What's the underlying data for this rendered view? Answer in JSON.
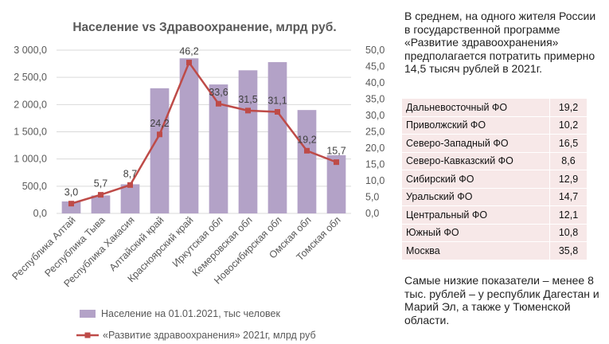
{
  "chart_data": {
    "type": "bar+line",
    "title": "Население vs Здравоохранение, млрд руб.",
    "categories": [
      "Республика Алтай",
      "Республика Тыва",
      "Республика Хакасия",
      "Алтайский край",
      "Красноярский край",
      "Иркутская обл",
      "Кемеровская обл",
      "Новосибирская обл",
      "Омская обл",
      "Томская обл"
    ],
    "series": [
      {
        "name": "Население на 01.01.2021, тыс человек",
        "kind": "bar",
        "axis": "left",
        "color": "#b3a2c7",
        "values": [
          220,
          330,
          535,
          2300,
          2850,
          2370,
          2630,
          2780,
          1900,
          1070
        ]
      },
      {
        "name": "«Развитие здравоохранения» 2021г, млрд руб",
        "kind": "line",
        "axis": "right",
        "color": "#be4b48",
        "values": [
          3.0,
          5.7,
          8.7,
          24.2,
          46.2,
          33.6,
          31.5,
          31.1,
          19.2,
          15.7
        ],
        "labels": [
          "3,0",
          "5,7",
          "8,7",
          "24,2",
          "46,2",
          "33,6",
          "31,5",
          "31,1",
          "19,2",
          "15,7"
        ]
      }
    ],
    "y_left": {
      "ylim": [
        0,
        3000
      ],
      "ticks": [
        0,
        500,
        1000,
        1500,
        2000,
        2500,
        3000
      ],
      "tick_labels": [
        "0,0",
        "500,0",
        "1 000,0",
        "1 500,0",
        "2 000,0",
        "2 500,0",
        "3 000,0"
      ]
    },
    "y_right": {
      "ylim": [
        0,
        50
      ],
      "ticks": [
        0,
        5,
        10,
        15,
        20,
        25,
        30,
        35,
        40,
        45,
        50
      ],
      "tick_labels": [
        "0,0",
        "5,0",
        "10,0",
        "15,0",
        "20,0",
        "25,0",
        "30,0",
        "35,0",
        "40,0",
        "45,0",
        "50,0"
      ]
    },
    "grid": true,
    "legend_position": "bottom"
  },
  "side": {
    "intro": "В среднем, на одного жителя России в государственной программе «Развитие здравоохранения» предполагается потратить примерно 14,5 тысяч рублей в 2021г.",
    "table": [
      {
        "region": "Дальневосточный ФО",
        "value": "19,2"
      },
      {
        "region": "Приволжский ФО",
        "value": "10,2"
      },
      {
        "region": "Северо-Западный ФО",
        "value": "16,5"
      },
      {
        "region": "Северо-Кавказский ФО",
        "value": "8,6"
      },
      {
        "region": "Сибирский ФО",
        "value": "12,9"
      },
      {
        "region": "Уральский ФО",
        "value": "14,7"
      },
      {
        "region": "Центральный ФО",
        "value": "12,1"
      },
      {
        "region": "Южный ФО",
        "value": "10,8"
      },
      {
        "region": "Москва",
        "value": "35,8"
      }
    ],
    "footer": "Самые низкие показатели – менее 8 тыс. рублей – у республик Дагестан и Марий Эл, а также у Тюменской области."
  }
}
